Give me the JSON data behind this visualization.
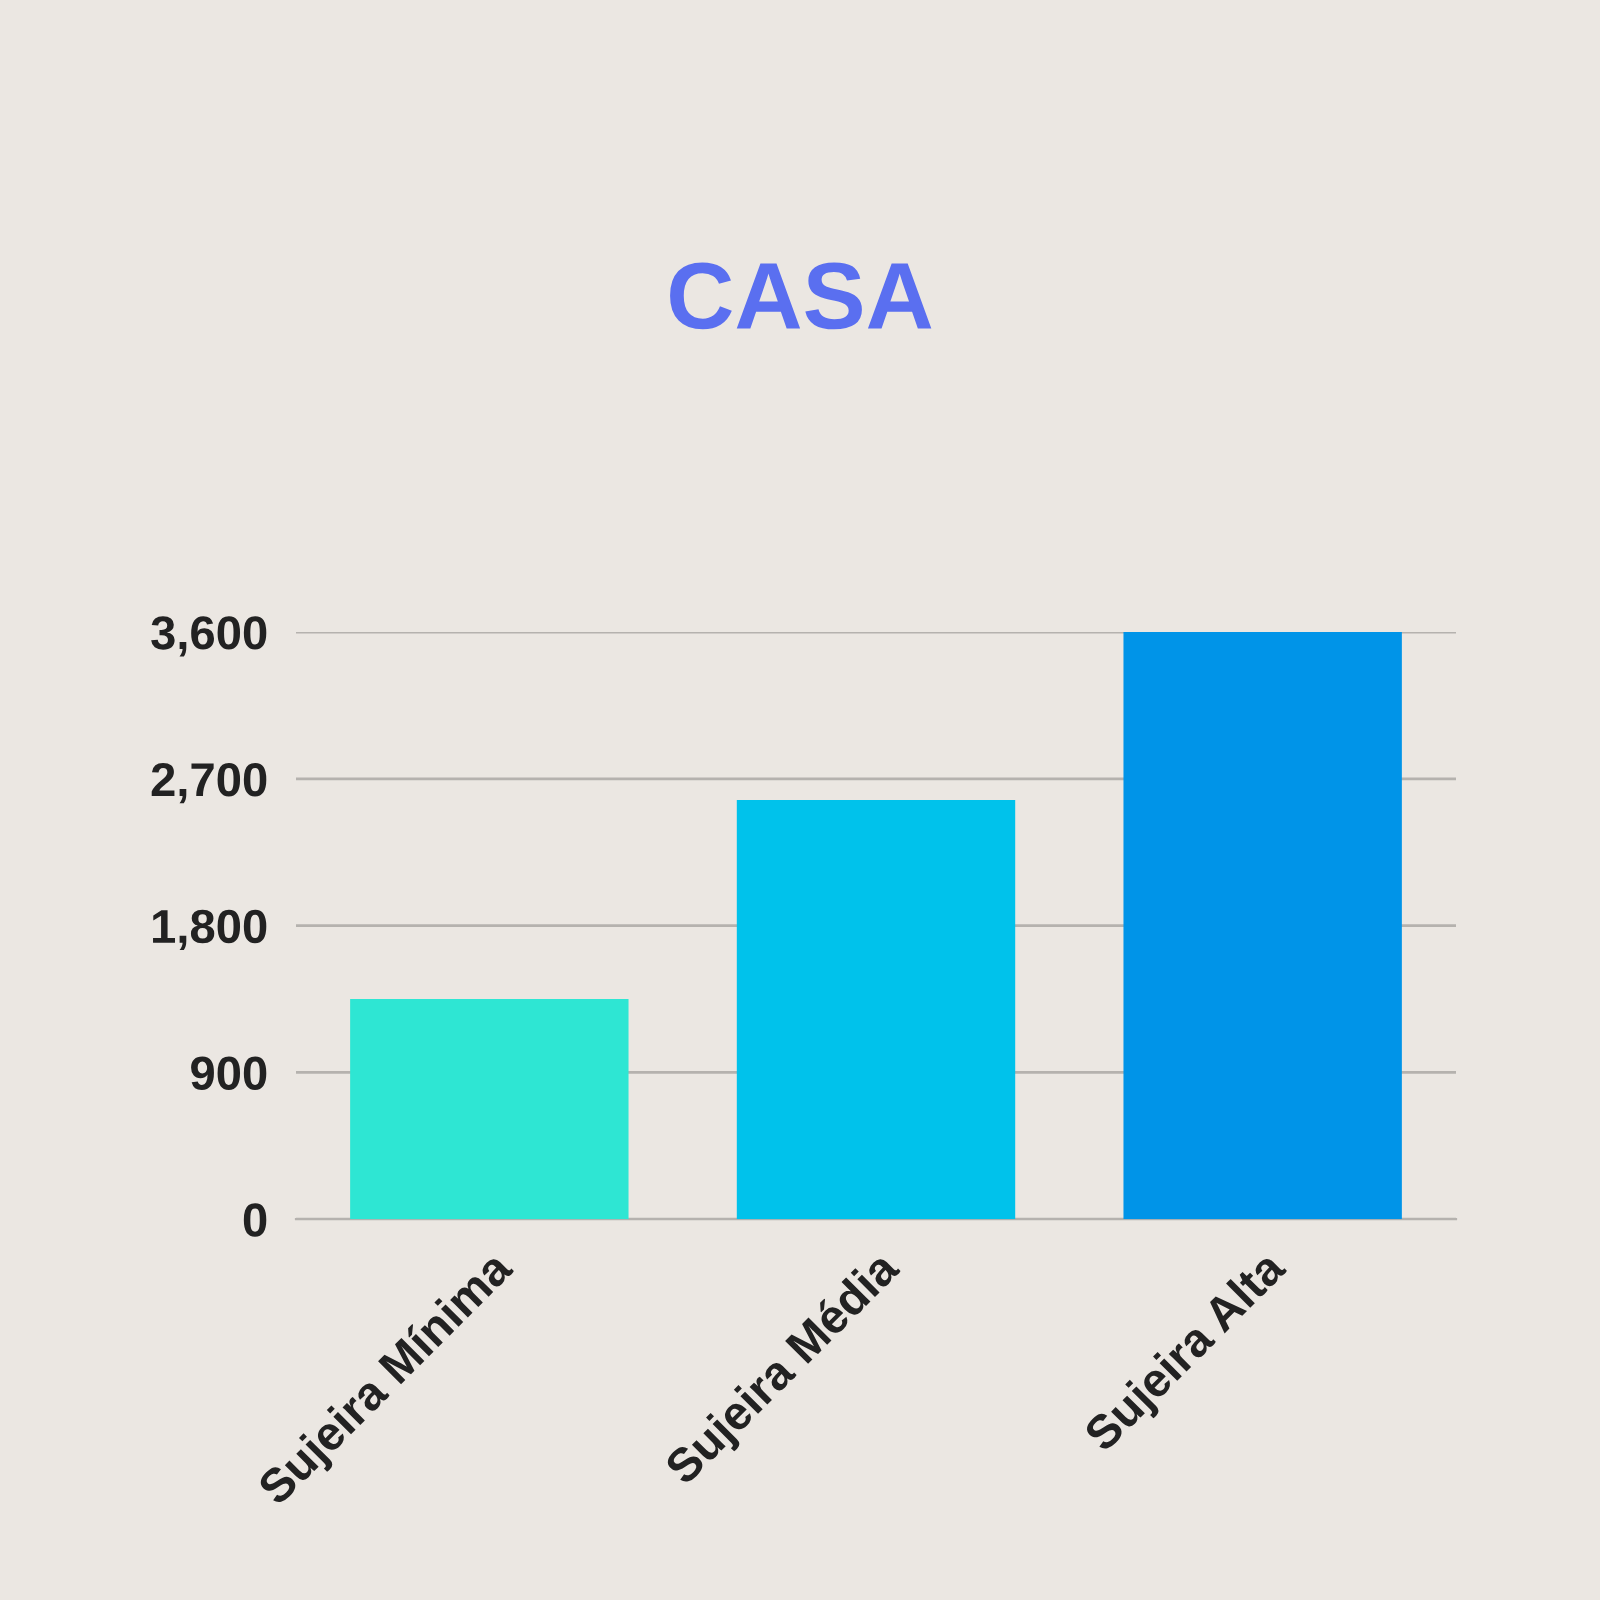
{
  "chart_data": {
    "type": "bar",
    "title": "CASA",
    "categories": [
      "Sujeira Mínima",
      "Sujeira Média",
      "Sujeira Alta"
    ],
    "values": [
      1350,
      2570,
      3600
    ],
    "colors": [
      "#2ee6d3",
      "#00c2eb",
      "#0094e8"
    ],
    "ylim": [
      0,
      3600
    ],
    "yticks": [
      {
        "value": 0,
        "label": "0"
      },
      {
        "value": 900,
        "label": "900"
      },
      {
        "value": 1800,
        "label": "1,800"
      },
      {
        "value": 2700,
        "label": "2,700"
      },
      {
        "value": 3600,
        "label": "3,600"
      }
    ],
    "grid": "y"
  }
}
